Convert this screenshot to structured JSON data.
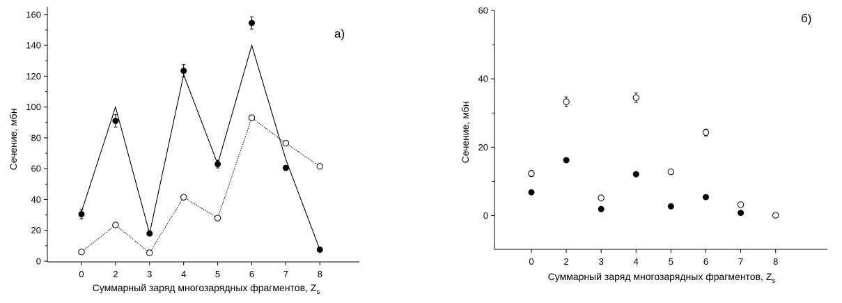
{
  "chart_data": [
    {
      "type": "scatter",
      "panel_label": "a)",
      "xlabel": "Суммарный заряд многозарядных фрагментов, Z",
      "xlabel_sub": "s",
      "ylabel": "Сечение, мбн",
      "categories": [
        "0",
        "2",
        "3",
        "4",
        "5",
        "6",
        "7",
        "8"
      ],
      "yticks": [
        0,
        20,
        40,
        60,
        80,
        100,
        120,
        140,
        160
      ],
      "ylim": [
        0,
        170
      ],
      "series": [
        {
          "marker": "filled",
          "values": [
            30.5,
            91,
            18,
            123.5,
            63,
            154.5,
            60.5,
            7.5
          ],
          "errors": [
            3,
            4,
            1.5,
            4,
            2.5,
            4,
            1.5,
            1
          ]
        },
        {
          "marker": "open",
          "values": [
            6,
            23.5,
            5.5,
            41.5,
            28,
            93,
            76.5,
            61.5
          ],
          "errors": [
            1,
            1,
            1,
            1,
            1,
            1,
            1,
            1
          ],
          "line": "dotted"
        },
        {
          "marker": "none",
          "line": "solid",
          "values": [
            32,
            100,
            18,
            121,
            63,
            140,
            66,
            7.5
          ]
        }
      ]
    },
    {
      "type": "scatter",
      "panel_label": "б)",
      "xlabel": "Суммарный заряд многозарядных фрагментов, Z",
      "xlabel_sub": "s",
      "ylabel": "Сечение, мбн",
      "categories": [
        "0",
        "2",
        "3",
        "4",
        "5",
        "6",
        "7",
        "8"
      ],
      "yticks": [
        0,
        20,
        40,
        60
      ],
      "ylim": [
        -10,
        60
      ],
      "series": [
        {
          "marker": "open",
          "values": [
            12.3,
            33.3,
            5.2,
            34.5,
            12.8,
            24.3,
            3.2,
            0.1
          ],
          "errors": [
            0.9,
            1.4,
            0.6,
            1.4,
            0.6,
            1.0,
            0.6,
            0.4
          ]
        },
        {
          "marker": "filled",
          "values": [
            6.8,
            16.2,
            1.9,
            12.1,
            2.7,
            5.4,
            0.8,
            null
          ],
          "errors": [
            0.4,
            0.5,
            0.3,
            0.4,
            0.3,
            0.3,
            0.2,
            null
          ]
        }
      ]
    }
  ]
}
